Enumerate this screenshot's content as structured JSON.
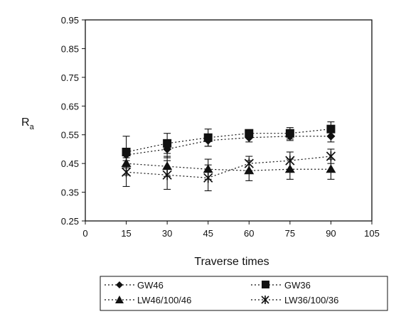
{
  "chart_data": {
    "type": "line",
    "title": "",
    "xlabel": "Traverse times",
    "ylabel": "R",
    "ylabel_sub": "a",
    "xlim": [
      0,
      105
    ],
    "ylim": [
      0.25,
      0.95
    ],
    "x_ticks": [
      0,
      15,
      30,
      45,
      60,
      75,
      90,
      105
    ],
    "y_ticks": [
      0.25,
      0.35,
      0.45,
      0.55,
      0.65,
      0.75,
      0.85,
      0.95
    ],
    "x_tick_labels": [
      "0",
      "15",
      "30",
      "45",
      "60",
      "75",
      "90",
      "105"
    ],
    "y_tick_labels": [
      "0.25",
      "0.35",
      "0.45",
      "0.55",
      "0.65",
      "0.75",
      "0.85",
      "0.95"
    ],
    "grid": false,
    "legend_position": "bottom",
    "x": [
      15,
      30,
      45,
      60,
      75,
      90
    ],
    "series": [
      {
        "name": "GW46",
        "marker": "diamond",
        "values": [
          0.48,
          0.5,
          0.53,
          0.54,
          0.545,
          0.545
        ],
        "error": [
          0.02,
          0.03,
          0.02,
          0.015,
          0.015,
          0.02
        ]
      },
      {
        "name": "GW36",
        "marker": "square",
        "values": [
          0.49,
          0.52,
          0.54,
          0.555,
          0.555,
          0.57
        ],
        "error": [
          0.055,
          0.035,
          0.03,
          0.01,
          0.02,
          0.025
        ]
      },
      {
        "name": "LW46/100/46",
        "marker": "triangle",
        "values": [
          0.45,
          0.44,
          0.43,
          0.425,
          0.43,
          0.43
        ],
        "error": [
          0.04,
          0.035,
          0.035,
          0.035,
          0.035,
          0.035
        ]
      },
      {
        "name": "LW36/100/36",
        "marker": "star",
        "values": [
          0.42,
          0.41,
          0.4,
          0.45,
          0.46,
          0.475
        ],
        "error": [
          0.05,
          0.05,
          0.045,
          0.025,
          0.03,
          0.025
        ]
      }
    ]
  }
}
